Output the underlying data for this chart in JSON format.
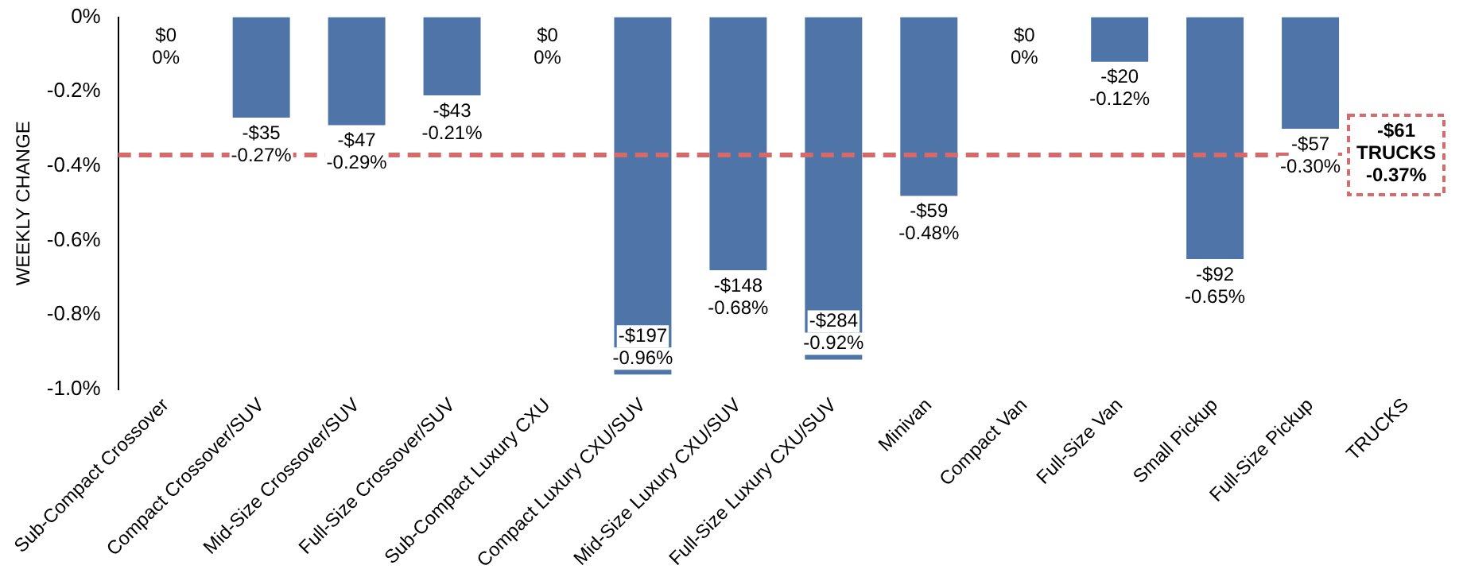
{
  "chart_data": {
    "type": "bar",
    "ylabel": "WEEKLY CHANGE",
    "categories": [
      "Sub-Compact Crossover",
      "Compact Crossover/SUV",
      "Mid-Size Crossover/SUV",
      "Full-Size Crossover/SUV",
      "Sub-Compact Luxury CXU",
      "Compact Luxury CXU/SUV",
      "Mid-Size Luxury CXU/SUV",
      "Full-Size Luxury CXU/SUV",
      "Minivan",
      "Compact Van",
      "Full-Size Van",
      "Small Pickup",
      "Full-Size Pickup",
      "TRUCKS"
    ],
    "values": [
      0,
      -0.27,
      -0.29,
      -0.21,
      0,
      -0.96,
      -0.68,
      -0.92,
      -0.48,
      0,
      -0.12,
      -0.65,
      -0.3,
      null
    ],
    "value_labels": [
      "$0\n0%",
      "-$35\n-0.27%",
      "-$47\n-0.29%",
      "-$43\n-0.21%",
      "$0\n0%",
      "-$197\n-0.96%",
      "-$148\n-0.68%",
      "-$284\n-0.92%",
      "-$59\n-0.48%",
      "$0\n0%",
      "-$20\n-0.12%",
      "-$92\n-0.65%",
      "-$57\n-0.30%",
      null
    ],
    "color": "#4f75a8",
    "ylim": [
      -1.0,
      0
    ],
    "yticks": [
      {
        "value": -1.0,
        "label": "-1.0%"
      },
      {
        "value": -0.8,
        "label": "-0.8%"
      },
      {
        "value": -0.6,
        "label": "-0.6%"
      },
      {
        "value": -0.4,
        "label": "-0.4%"
      },
      {
        "value": -0.2,
        "label": "-0.2%"
      },
      {
        "value": 0,
        "label": "0%"
      }
    ],
    "ref_lines": [
      {
        "axis": "y",
        "value": -0.37,
        "label": "-$61\nTRUCKS\n-0.37%",
        "color": "#d46a6a",
        "line_style": "dashed"
      }
    ],
    "grid": false,
    "legend": false
  }
}
